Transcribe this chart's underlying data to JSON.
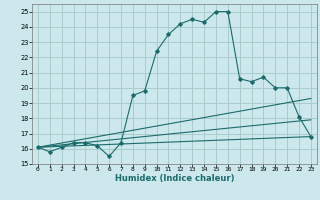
{
  "xlabel": "Humidex (Indice chaleur)",
  "background_color": "#cce8ec",
  "grid_color": "#aacccc",
  "line_color": "#1a6b6b",
  "xlim": [
    -0.5,
    23.5
  ],
  "ylim": [
    15,
    25.5
  ],
  "xticks": [
    0,
    1,
    2,
    3,
    4,
    5,
    6,
    7,
    8,
    9,
    10,
    11,
    12,
    13,
    14,
    15,
    16,
    17,
    18,
    19,
    20,
    21,
    22,
    23
  ],
  "x_tick_labels": [
    "0",
    "1",
    "2",
    "3",
    "4",
    "5",
    "6",
    "7",
    "8",
    "9",
    "10",
    "11",
    "12",
    "13",
    "14",
    "15",
    "16",
    "17",
    "18",
    "19",
    "20",
    "21",
    "22",
    "23"
  ],
  "yticks": [
    15,
    16,
    17,
    18,
    19,
    20,
    21,
    22,
    23,
    24,
    25
  ],
  "y_tick_labels": [
    "15",
    "16",
    "17",
    "18",
    "19",
    "20",
    "21",
    "22",
    "23",
    "24",
    "25"
  ],
  "series1_x": [
    0,
    1,
    2,
    3,
    4,
    5,
    6,
    7,
    8,
    9,
    10,
    11,
    12,
    13,
    14,
    15,
    16,
    17,
    18,
    19,
    20,
    21,
    22,
    23
  ],
  "series1_y": [
    16.1,
    15.8,
    16.1,
    16.4,
    16.4,
    16.2,
    15.5,
    16.4,
    19.5,
    19.8,
    22.4,
    23.5,
    24.2,
    24.5,
    24.3,
    25.0,
    25.0,
    20.6,
    20.4,
    20.7,
    20.0,
    20.0,
    18.1,
    16.8
  ],
  "series2_x": [
    0,
    23
  ],
  "series2_y": [
    16.1,
    19.3
  ],
  "series3_x": [
    0,
    23
  ],
  "series3_y": [
    16.1,
    17.9
  ],
  "series4_x": [
    0,
    23
  ],
  "series4_y": [
    16.1,
    16.8
  ]
}
